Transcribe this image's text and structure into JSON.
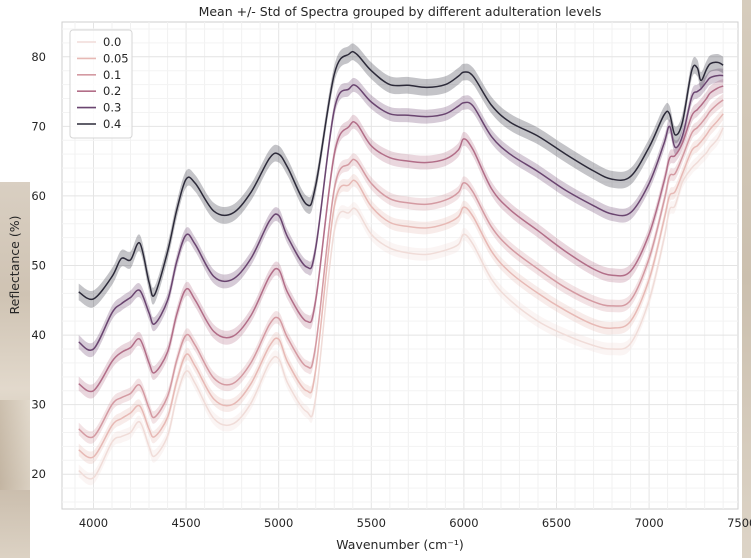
{
  "chart_data": {
    "type": "line",
    "title": "Mean +/- Std of Spectra grouped by different adulteration levels",
    "xlabel": "Wavenumber (cm⁻¹)",
    "ylabel": "Reflectance (%)",
    "xlim": [
      3830,
      7480
    ],
    "ylim": [
      15,
      85
    ],
    "xticks": [
      4000,
      4500,
      5000,
      5500,
      6000,
      6500,
      7000,
      7500
    ],
    "xtick_labels": [
      "4000",
      "4500",
      "5000",
      "5500",
      "6000",
      "6500",
      "7000",
      "7500"
    ],
    "yticks": [
      20,
      30,
      40,
      50,
      60,
      70,
      80
    ],
    "ytick_labels": [
      "20",
      "30",
      "40",
      "50",
      "60",
      "70",
      "80"
    ],
    "grid": true,
    "legend_position": "top-left",
    "x": [
      3920,
      4000,
      4100,
      4150,
      4200,
      4250,
      4300,
      4330,
      4400,
      4450,
      4500,
      4550,
      4650,
      4750,
      4850,
      4950,
      5000,
      5050,
      5150,
      5200,
      5300,
      5380,
      5420,
      5500,
      5600,
      5700,
      5800,
      5900,
      5970,
      6000,
      6050,
      6150,
      6250,
      6400,
      6550,
      6700,
      6800,
      6900,
      7000,
      7080,
      7110,
      7140,
      7180,
      7230,
      7260,
      7280,
      7310,
      7330,
      7370,
      7400
    ],
    "series": [
      {
        "name": "0.0",
        "color": "#f0dcd8",
        "std": 0.9,
        "values": [
          20.5,
          19.5,
          24.6,
          25.4,
          26.0,
          27.5,
          24.0,
          22.6,
          25.5,
          31.2,
          34.8,
          33.0,
          28.0,
          27.2,
          30.2,
          36.0,
          36.6,
          33.0,
          29.0,
          31.0,
          55.0,
          57.6,
          58.0,
          54.5,
          52.5,
          51.8,
          51.6,
          52.2,
          53.0,
          54.5,
          53.0,
          48.0,
          45.0,
          42.0,
          40.0,
          38.5,
          38.0,
          38.8,
          45.0,
          53.8,
          58.0,
          58.6,
          62.0,
          64.0,
          64.8,
          65.4,
          66.2,
          67.0,
          68.2,
          69.8
        ]
      },
      {
        "name": "0.05",
        "color": "#e7b9b5",
        "std": 0.9,
        "values": [
          23.5,
          22.5,
          27.0,
          28.0,
          28.8,
          29.8,
          26.5,
          25.4,
          28.2,
          33.4,
          37.2,
          35.5,
          30.8,
          30.0,
          33.0,
          38.4,
          39.4,
          36.0,
          32.0,
          35.0,
          58.5,
          61.6,
          62.0,
          58.5,
          56.2,
          55.6,
          55.4,
          56.0,
          57.0,
          58.4,
          57.0,
          52.0,
          49.0,
          46.0,
          43.5,
          41.5,
          41.0,
          42.0,
          48.0,
          56.5,
          60.0,
          60.6,
          63.2,
          66.5,
          67.2,
          67.8,
          68.8,
          69.6,
          70.8,
          71.8
        ]
      },
      {
        "name": "0.1",
        "color": "#d49aa2",
        "std": 0.9,
        "values": [
          26.5,
          25.4,
          30.0,
          31.0,
          31.6,
          32.8,
          29.5,
          28.2,
          31.2,
          36.4,
          40.0,
          38.5,
          33.8,
          33.0,
          36.0,
          41.5,
          42.4,
          39.5,
          35.5,
          38.5,
          61.0,
          64.6,
          65.0,
          61.8,
          59.6,
          59.0,
          58.8,
          59.4,
          60.5,
          61.9,
          60.5,
          55.5,
          52.5,
          49.5,
          46.8,
          44.8,
          44.2,
          45.0,
          51.0,
          59.2,
          62.8,
          63.2,
          65.6,
          69.0,
          69.8,
          70.4,
          71.4,
          72.2,
          73.2,
          73.8
        ]
      },
      {
        "name": "0.2",
        "color": "#b26e88",
        "std": 1.0,
        "values": [
          33.0,
          32.0,
          36.2,
          37.5,
          38.2,
          39.4,
          36.0,
          34.6,
          37.6,
          43.0,
          46.6,
          45.0,
          40.5,
          39.8,
          42.8,
          48.4,
          49.4,
          46.0,
          42.0,
          45.0,
          66.0,
          70.0,
          70.4,
          67.2,
          65.5,
          65.0,
          64.8,
          65.3,
          66.6,
          68.2,
          66.6,
          61.0,
          58.0,
          55.0,
          52.0,
          49.5,
          48.6,
          49.2,
          54.5,
          62.0,
          65.4,
          65.8,
          67.6,
          71.5,
          72.4,
          73.0,
          74.0,
          74.8,
          75.5,
          75.8
        ]
      },
      {
        "name": "0.3",
        "color": "#6a4570",
        "std": 1.0,
        "values": [
          39.0,
          38.0,
          43.2,
          44.5,
          45.4,
          46.4,
          43.2,
          41.6,
          45.0,
          50.6,
          54.4,
          53.0,
          48.4,
          48.0,
          51.0,
          56.4,
          57.2,
          54.0,
          49.8,
          52.5,
          72.4,
          75.4,
          75.8,
          73.5,
          71.8,
          71.6,
          71.4,
          71.8,
          72.9,
          73.4,
          72.9,
          68.5,
          66.0,
          63.5,
          60.8,
          58.6,
          57.4,
          57.6,
          61.8,
          67.5,
          70.0,
          67.0,
          68.6,
          74.2,
          75.0,
          75.4,
          76.4,
          77.0,
          77.3,
          77.3
        ]
      },
      {
        "name": "0.4",
        "color": "#2c2a39",
        "std": 1.2,
        "values": [
          46.2,
          45.2,
          48.4,
          51.0,
          50.8,
          53.2,
          47.6,
          45.8,
          52.0,
          58.0,
          62.4,
          61.8,
          57.8,
          57.5,
          60.5,
          65.4,
          66.0,
          64.0,
          58.8,
          61.5,
          77.5,
          80.4,
          80.4,
          78.0,
          76.0,
          75.9,
          75.6,
          76.0,
          77.2,
          77.8,
          77.2,
          73.0,
          70.6,
          68.6,
          66.0,
          63.6,
          62.4,
          62.8,
          67.0,
          71.6,
          71.8,
          68.8,
          70.6,
          78.0,
          78.4,
          76.6,
          78.2,
          79.0,
          79.2,
          78.8
        ]
      }
    ]
  }
}
